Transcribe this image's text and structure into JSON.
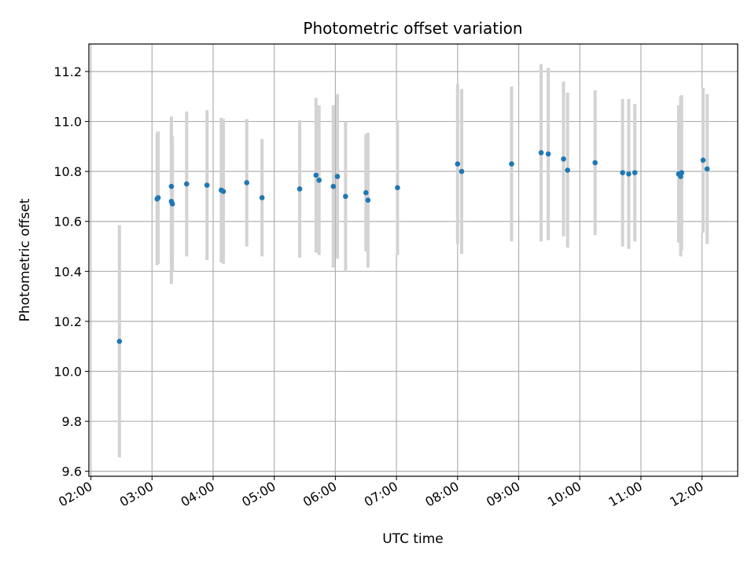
{
  "chart_data": {
    "type": "scatter",
    "title": "Photometric offset variation",
    "xlabel": "UTC time",
    "ylabel": "Photometric offset",
    "x_ticks": [
      "02:00",
      "03:00",
      "04:00",
      "05:00",
      "06:00",
      "07:00",
      "08:00",
      "09:00",
      "10:00",
      "11:00",
      "12:00"
    ],
    "y_ticks": [
      "9.6",
      "9.8",
      "10.0",
      "10.2",
      "10.4",
      "10.6",
      "10.8",
      "11.0",
      "11.2"
    ],
    "xlim": [
      "01:58",
      "12:35"
    ],
    "ylim": [
      9.58,
      11.31
    ],
    "grid": true,
    "colors": {
      "points": "#1f77b4",
      "errorbars": "#d3d3d3",
      "grid": "#b0b0b0"
    },
    "series": [
      {
        "points": [
          {
            "x": "02:28",
            "y": 10.12,
            "err": 0.465
          },
          {
            "x": "03:05",
            "y": 10.69,
            "err": 0.265
          },
          {
            "x": "03:06",
            "y": 10.695,
            "err": 0.265
          },
          {
            "x": "03:19",
            "y": 10.68,
            "err": 0.33
          },
          {
            "x": "03:19",
            "y": 10.74,
            "err": 0.28
          },
          {
            "x": "03:20",
            "y": 10.67,
            "err": 0.27
          },
          {
            "x": "03:34",
            "y": 10.75,
            "err": 0.29
          },
          {
            "x": "03:54",
            "y": 10.745,
            "err": 0.3
          },
          {
            "x": "04:08",
            "y": 10.725,
            "err": 0.29
          },
          {
            "x": "04:10",
            "y": 10.72,
            "err": 0.29
          },
          {
            "x": "04:33",
            "y": 10.755,
            "err": 0.255
          },
          {
            "x": "04:48",
            "y": 10.695,
            "err": 0.235
          },
          {
            "x": "05:25",
            "y": 10.73,
            "err": 0.275
          },
          {
            "x": "05:41",
            "y": 10.785,
            "err": 0.31
          },
          {
            "x": "05:44",
            "y": 10.765,
            "err": 0.3
          },
          {
            "x": "05:58",
            "y": 10.74,
            "err": 0.325
          },
          {
            "x": "06:02",
            "y": 10.78,
            "err": 0.33
          },
          {
            "x": "06:10",
            "y": 10.7,
            "err": 0.3
          },
          {
            "x": "06:30",
            "y": 10.715,
            "err": 0.235
          },
          {
            "x": "06:32",
            "y": 10.685,
            "err": 0.27
          },
          {
            "x": "07:01",
            "y": 10.735,
            "err": 0.27
          },
          {
            "x": "08:00",
            "y": 10.83,
            "err": 0.32
          },
          {
            "x": "08:04",
            "y": 10.8,
            "err": 0.33
          },
          {
            "x": "08:53",
            "y": 10.83,
            "err": 0.31
          },
          {
            "x": "09:22",
            "y": 10.875,
            "err": 0.355
          },
          {
            "x": "09:29",
            "y": 10.87,
            "err": 0.345
          },
          {
            "x": "09:44",
            "y": 10.85,
            "err": 0.31
          },
          {
            "x": "09:48",
            "y": 10.805,
            "err": 0.31
          },
          {
            "x": "10:15",
            "y": 10.835,
            "err": 0.29
          },
          {
            "x": "10:42",
            "y": 10.795,
            "err": 0.295
          },
          {
            "x": "10:48",
            "y": 10.79,
            "err": 0.3
          },
          {
            "x": "10:54",
            "y": 10.795,
            "err": 0.275
          },
          {
            "x": "11:37",
            "y": 10.79,
            "err": 0.275
          },
          {
            "x": "11:39",
            "y": 10.78,
            "err": 0.32
          },
          {
            "x": "11:40",
            "y": 10.795,
            "err": 0.31
          },
          {
            "x": "12:01",
            "y": 10.845,
            "err": 0.29
          },
          {
            "x": "12:05",
            "y": 10.81,
            "err": 0.3
          }
        ]
      }
    ]
  }
}
